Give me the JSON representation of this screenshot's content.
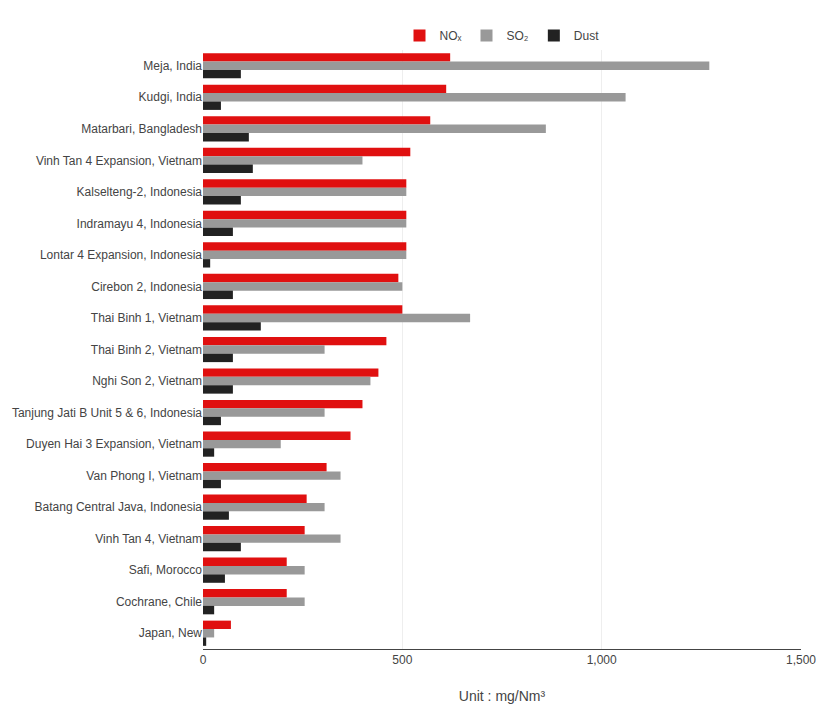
{
  "chart_data": {
    "type": "bar",
    "orientation": "horizontal",
    "categories": [
      "Meja, India",
      "Kudgi, India",
      "Matarbari, Bangladesh",
      "Vinh Tan 4 Expansion, Vietnam",
      "Kalselteng-2, Indonesia",
      "Indramayu 4, Indonesia",
      "Lontar 4 Expansion, Indonesia",
      "Cirebon 2, Indonesia",
      "Thai Binh 1, Vietnam",
      "Thai Binh 2, Vietnam",
      "Nghi Son 2, Vietnam",
      "Tanjung Jati B Unit 5 & 6, Indonesia",
      "Duyen Hai 3 Expansion, Vietnam",
      "Van Phong I, Vietnam",
      "Batang Central Java, Indonesia",
      "Vinh Tan 4, Vietnam",
      "Safi, Morocco",
      "Cochrane, Chile",
      "Japan, New"
    ],
    "series": [
      {
        "name": "NOₓ",
        "color": "#e01010",
        "values": [
          620,
          610,
          570,
          520,
          510,
          510,
          510,
          490,
          500,
          460,
          440,
          400,
          370,
          310,
          260,
          255,
          210,
          210,
          70
        ]
      },
      {
        "name": "SO₂",
        "color": "#999999",
        "values": [
          1270,
          1060,
          860,
          400,
          510,
          510,
          510,
          500,
          670,
          305,
          420,
          305,
          195,
          345,
          305,
          345,
          255,
          255,
          28
        ]
      },
      {
        "name": "Dust",
        "color": "#222222",
        "values": [
          95,
          45,
          115,
          125,
          95,
          75,
          18,
          75,
          145,
          75,
          75,
          45,
          28,
          45,
          65,
          95,
          55,
          28,
          8
        ]
      }
    ],
    "xlabel": "Unit : mg/Nm³",
    "xlim": [
      0,
      1500
    ],
    "xticks": [
      0,
      500,
      {
        "value": 1000,
        "label": "1,000"
      },
      {
        "value": 1500,
        "label": "1,500"
      }
    ],
    "grid": true,
    "legend": "top"
  }
}
